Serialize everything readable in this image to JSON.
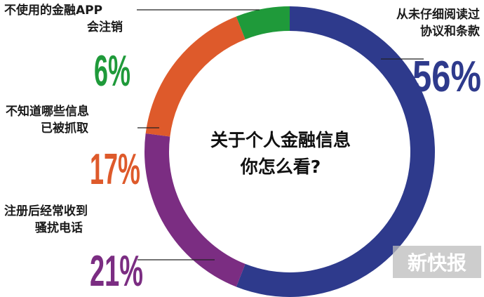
{
  "chart_data": {
    "type": "pie",
    "title": "关于个人金融信息你怎么看?",
    "title_lines": [
      "关于个人金融信息",
      "你怎么看?"
    ],
    "categories": [
      "从未仔细阅读过协议和条款",
      "注册后经常收到骚扰电话",
      "不知道哪些信息已被抓取",
      "不使用的金融APP会注销"
    ],
    "values": [
      56,
      21,
      17,
      6
    ],
    "unit": "%"
  },
  "slices": [
    {
      "label_lines": [
        "从未仔细阅读过",
        "协议和条款"
      ],
      "value_text": "56%",
      "color": "#2e3a8c"
    },
    {
      "label_lines": [
        "注册后经常收到",
        "骚扰电话"
      ],
      "value_text": "21%",
      "color": "#7b2d82"
    },
    {
      "label_lines": [
        "不知道哪些信息",
        "已被抓取"
      ],
      "value_text": "17%",
      "color": "#de5a2b"
    },
    {
      "label_lines": [
        "不使用的金融APP",
        "会注销"
      ],
      "value_text": "6%",
      "color": "#1f9a3a"
    }
  ],
  "watermark": "新快报"
}
